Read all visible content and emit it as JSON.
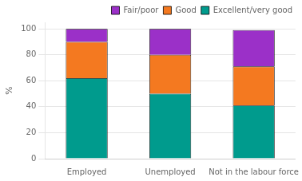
{
  "chart_data": {
    "type": "bar",
    "stacked": true,
    "categories": [
      "Employed",
      "Unemployed",
      "Not in the labour force"
    ],
    "series": [
      {
        "name": "Excellent/very good",
        "color": "#009B8D",
        "values": [
          62,
          50,
          41
        ]
      },
      {
        "name": "Good",
        "color": "#F47920",
        "values": [
          28,
          30,
          30
        ]
      },
      {
        "name": "Fair/poor",
        "color": "#9B30C8",
        "values": [
          10,
          20,
          28
        ]
      }
    ],
    "ylabel": "%",
    "ylim": [
      0,
      105
    ],
    "yticks": [
      0,
      20,
      40,
      60,
      80,
      100
    ],
    "grid": true,
    "legend": "upper right"
  }
}
